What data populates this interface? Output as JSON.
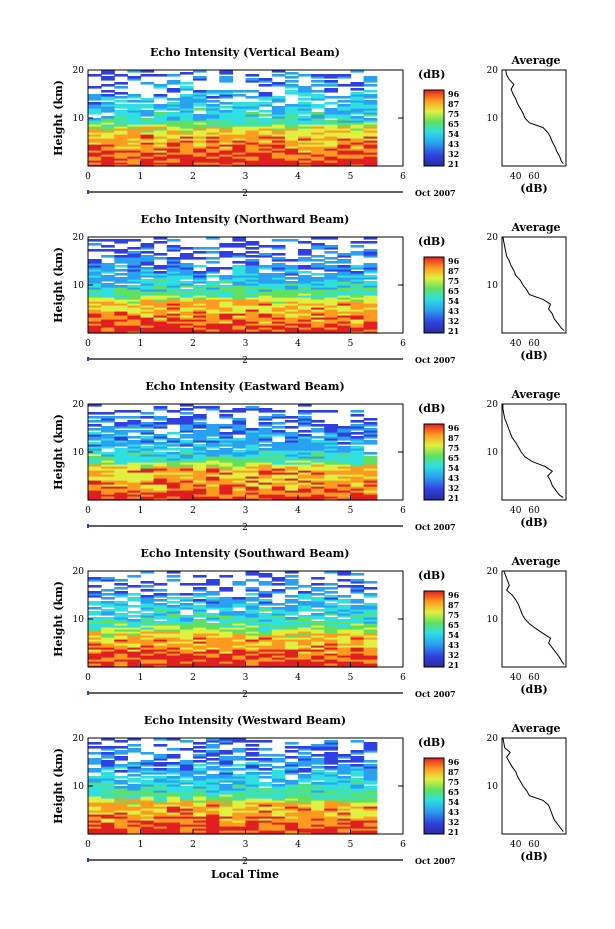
{
  "figure": {
    "xlabel": "Local Time"
  },
  "panels": [
    {
      "title": "Echo Intensity (Vertical Beam)",
      "key": "vertical"
    },
    {
      "title": "Echo Intensity (Northward Beam)",
      "key": "north"
    },
    {
      "title": "Echo Intensity (Eastward Beam)",
      "key": "east"
    },
    {
      "title": "Echo Intensity (Southward Beam)",
      "key": "south"
    },
    {
      "title": "Echo Intensity (Westward Beam)",
      "key": "west"
    }
  ],
  "common": {
    "ylabel": "Height (km)",
    "yticks": [
      "10",
      "20"
    ],
    "xticks": [
      "0",
      "1",
      "2",
      "3",
      "4",
      "5",
      "6"
    ],
    "date_day": "2",
    "date_label": "Oct 2007",
    "colorbar_unit": "(dB)",
    "colorbar_ticks": [
      "96",
      "87",
      "75",
      "65",
      "54",
      "43",
      "32",
      "21"
    ],
    "avg_title": "Average",
    "avg_xlabel": "(dB)",
    "avg_xticks": [
      "40",
      "60"
    ],
    "avg_yticks": [
      "10",
      "20"
    ]
  },
  "chart_data": [
    {
      "type": "heatmap",
      "title": "Echo Intensity (Vertical Beam)",
      "xlabel": "Local Time",
      "ylabel": "Height (km)",
      "xlim": [
        0,
        6
      ],
      "ylim": [
        0,
        20
      ],
      "data_xmax": 5.5,
      "colorbar": {
        "label": "(dB)",
        "ticks": [
          96,
          87,
          75,
          65,
          54,
          43,
          32,
          21
        ]
      },
      "description_values": "intensity decreasing with height; highest values (~85-95 dB) below 3 km",
      "average_profile": {
        "title": "Average",
        "xlabel": "(dB)",
        "xlim": [
          25,
          95
        ],
        "ylim": [
          0,
          20
        ],
        "height_km": [
          0.5,
          1,
          2,
          3,
          4,
          5,
          6,
          7,
          8,
          9,
          10,
          11,
          12,
          13,
          14,
          15,
          16,
          17,
          18,
          19,
          20
        ],
        "db": [
          92,
          90,
          88,
          85,
          83,
          80,
          78,
          75,
          70,
          55,
          50,
          48,
          45,
          42,
          40,
          37,
          35,
          38,
          33,
          30,
          29
        ]
      }
    },
    {
      "type": "heatmap",
      "title": "Echo Intensity (Northward Beam)",
      "xlabel": "Local Time",
      "ylabel": "Height (km)",
      "xlim": [
        0,
        6
      ],
      "ylim": [
        0,
        20
      ],
      "data_xmax": 5.5,
      "colorbar": {
        "label": "(dB)",
        "ticks": [
          96,
          87,
          75,
          65,
          54,
          43,
          32,
          21
        ]
      },
      "average_profile": {
        "title": "Average",
        "xlabel": "(dB)",
        "xlim": [
          25,
          95
        ],
        "ylim": [
          0,
          20
        ],
        "height_km": [
          0.5,
          1,
          2,
          3,
          4,
          5,
          6,
          7,
          8,
          9,
          10,
          11,
          12,
          13,
          14,
          15,
          16,
          17,
          18,
          19,
          20
        ],
        "db": [
          93,
          90,
          86,
          82,
          80,
          76,
          78,
          70,
          55,
          52,
          48,
          45,
          40,
          38,
          35,
          33,
          30,
          29,
          28,
          27,
          26
        ]
      }
    },
    {
      "type": "heatmap",
      "title": "Echo Intensity (Eastward Beam)",
      "xlabel": "Local Time",
      "ylabel": "Height (km)",
      "xlim": [
        0,
        6
      ],
      "ylim": [
        0,
        20
      ],
      "data_xmax": 5.5,
      "colorbar": {
        "label": "(dB)",
        "ticks": [
          96,
          87,
          75,
          65,
          54,
          43,
          32,
          21
        ]
      },
      "average_profile": {
        "title": "Average",
        "xlabel": "(dB)",
        "xlim": [
          25,
          95
        ],
        "ylim": [
          0,
          20
        ],
        "height_km": [
          0.5,
          1,
          2,
          3,
          4,
          5,
          6,
          7,
          8,
          9,
          10,
          11,
          12,
          13,
          14,
          15,
          16,
          17,
          18,
          19,
          20
        ],
        "db": [
          92,
          88,
          84,
          80,
          78,
          75,
          80,
          72,
          58,
          50,
          46,
          43,
          40,
          36,
          34,
          32,
          30,
          28,
          27,
          26,
          26
        ]
      }
    },
    {
      "type": "heatmap",
      "title": "Echo Intensity (Southward Beam)",
      "xlabel": "Local Time",
      "ylabel": "Height (km)",
      "xlim": [
        0,
        6
      ],
      "ylim": [
        0,
        20
      ],
      "data_xmax": 5.5,
      "colorbar": {
        "label": "(dB)",
        "ticks": [
          96,
          87,
          75,
          65,
          54,
          43,
          32,
          21
        ]
      },
      "average_profile": {
        "title": "Average",
        "xlabel": "(dB)",
        "xlim": [
          25,
          95
        ],
        "ylim": [
          0,
          20
        ],
        "height_km": [
          0.5,
          1,
          2,
          3,
          4,
          5,
          6,
          7,
          8,
          9,
          10,
          11,
          12,
          13,
          14,
          15,
          16,
          17,
          18,
          19,
          20
        ],
        "db": [
          93,
          91,
          88,
          84,
          80,
          76,
          78,
          70,
          62,
          55,
          50,
          47,
          45,
          43,
          40,
          36,
          30,
          33,
          31,
          29,
          27
        ]
      }
    },
    {
      "type": "heatmap",
      "title": "Echo Intensity (Westward Beam)",
      "xlabel": "Local Time",
      "ylabel": "Height (km)",
      "xlim": [
        0,
        6
      ],
      "ylim": [
        0,
        20
      ],
      "data_xmax": 5.5,
      "colorbar": {
        "label": "(dB)",
        "ticks": [
          96,
          87,
          75,
          65,
          54,
          43,
          32,
          21
        ]
      },
      "average_profile": {
        "title": "Average",
        "xlabel": "(dB)",
        "xlim": [
          25,
          95
        ],
        "ylim": [
          0,
          20
        ],
        "height_km": [
          0.5,
          1,
          2,
          3,
          4,
          5,
          6,
          7,
          8,
          9,
          10,
          11,
          12,
          13,
          14,
          15,
          16,
          17,
          18,
          19,
          20
        ],
        "db": [
          92,
          90,
          86,
          82,
          80,
          78,
          76,
          70,
          55,
          52,
          48,
          45,
          42,
          40,
          36,
          33,
          30,
          34,
          28,
          27,
          26
        ]
      }
    }
  ]
}
